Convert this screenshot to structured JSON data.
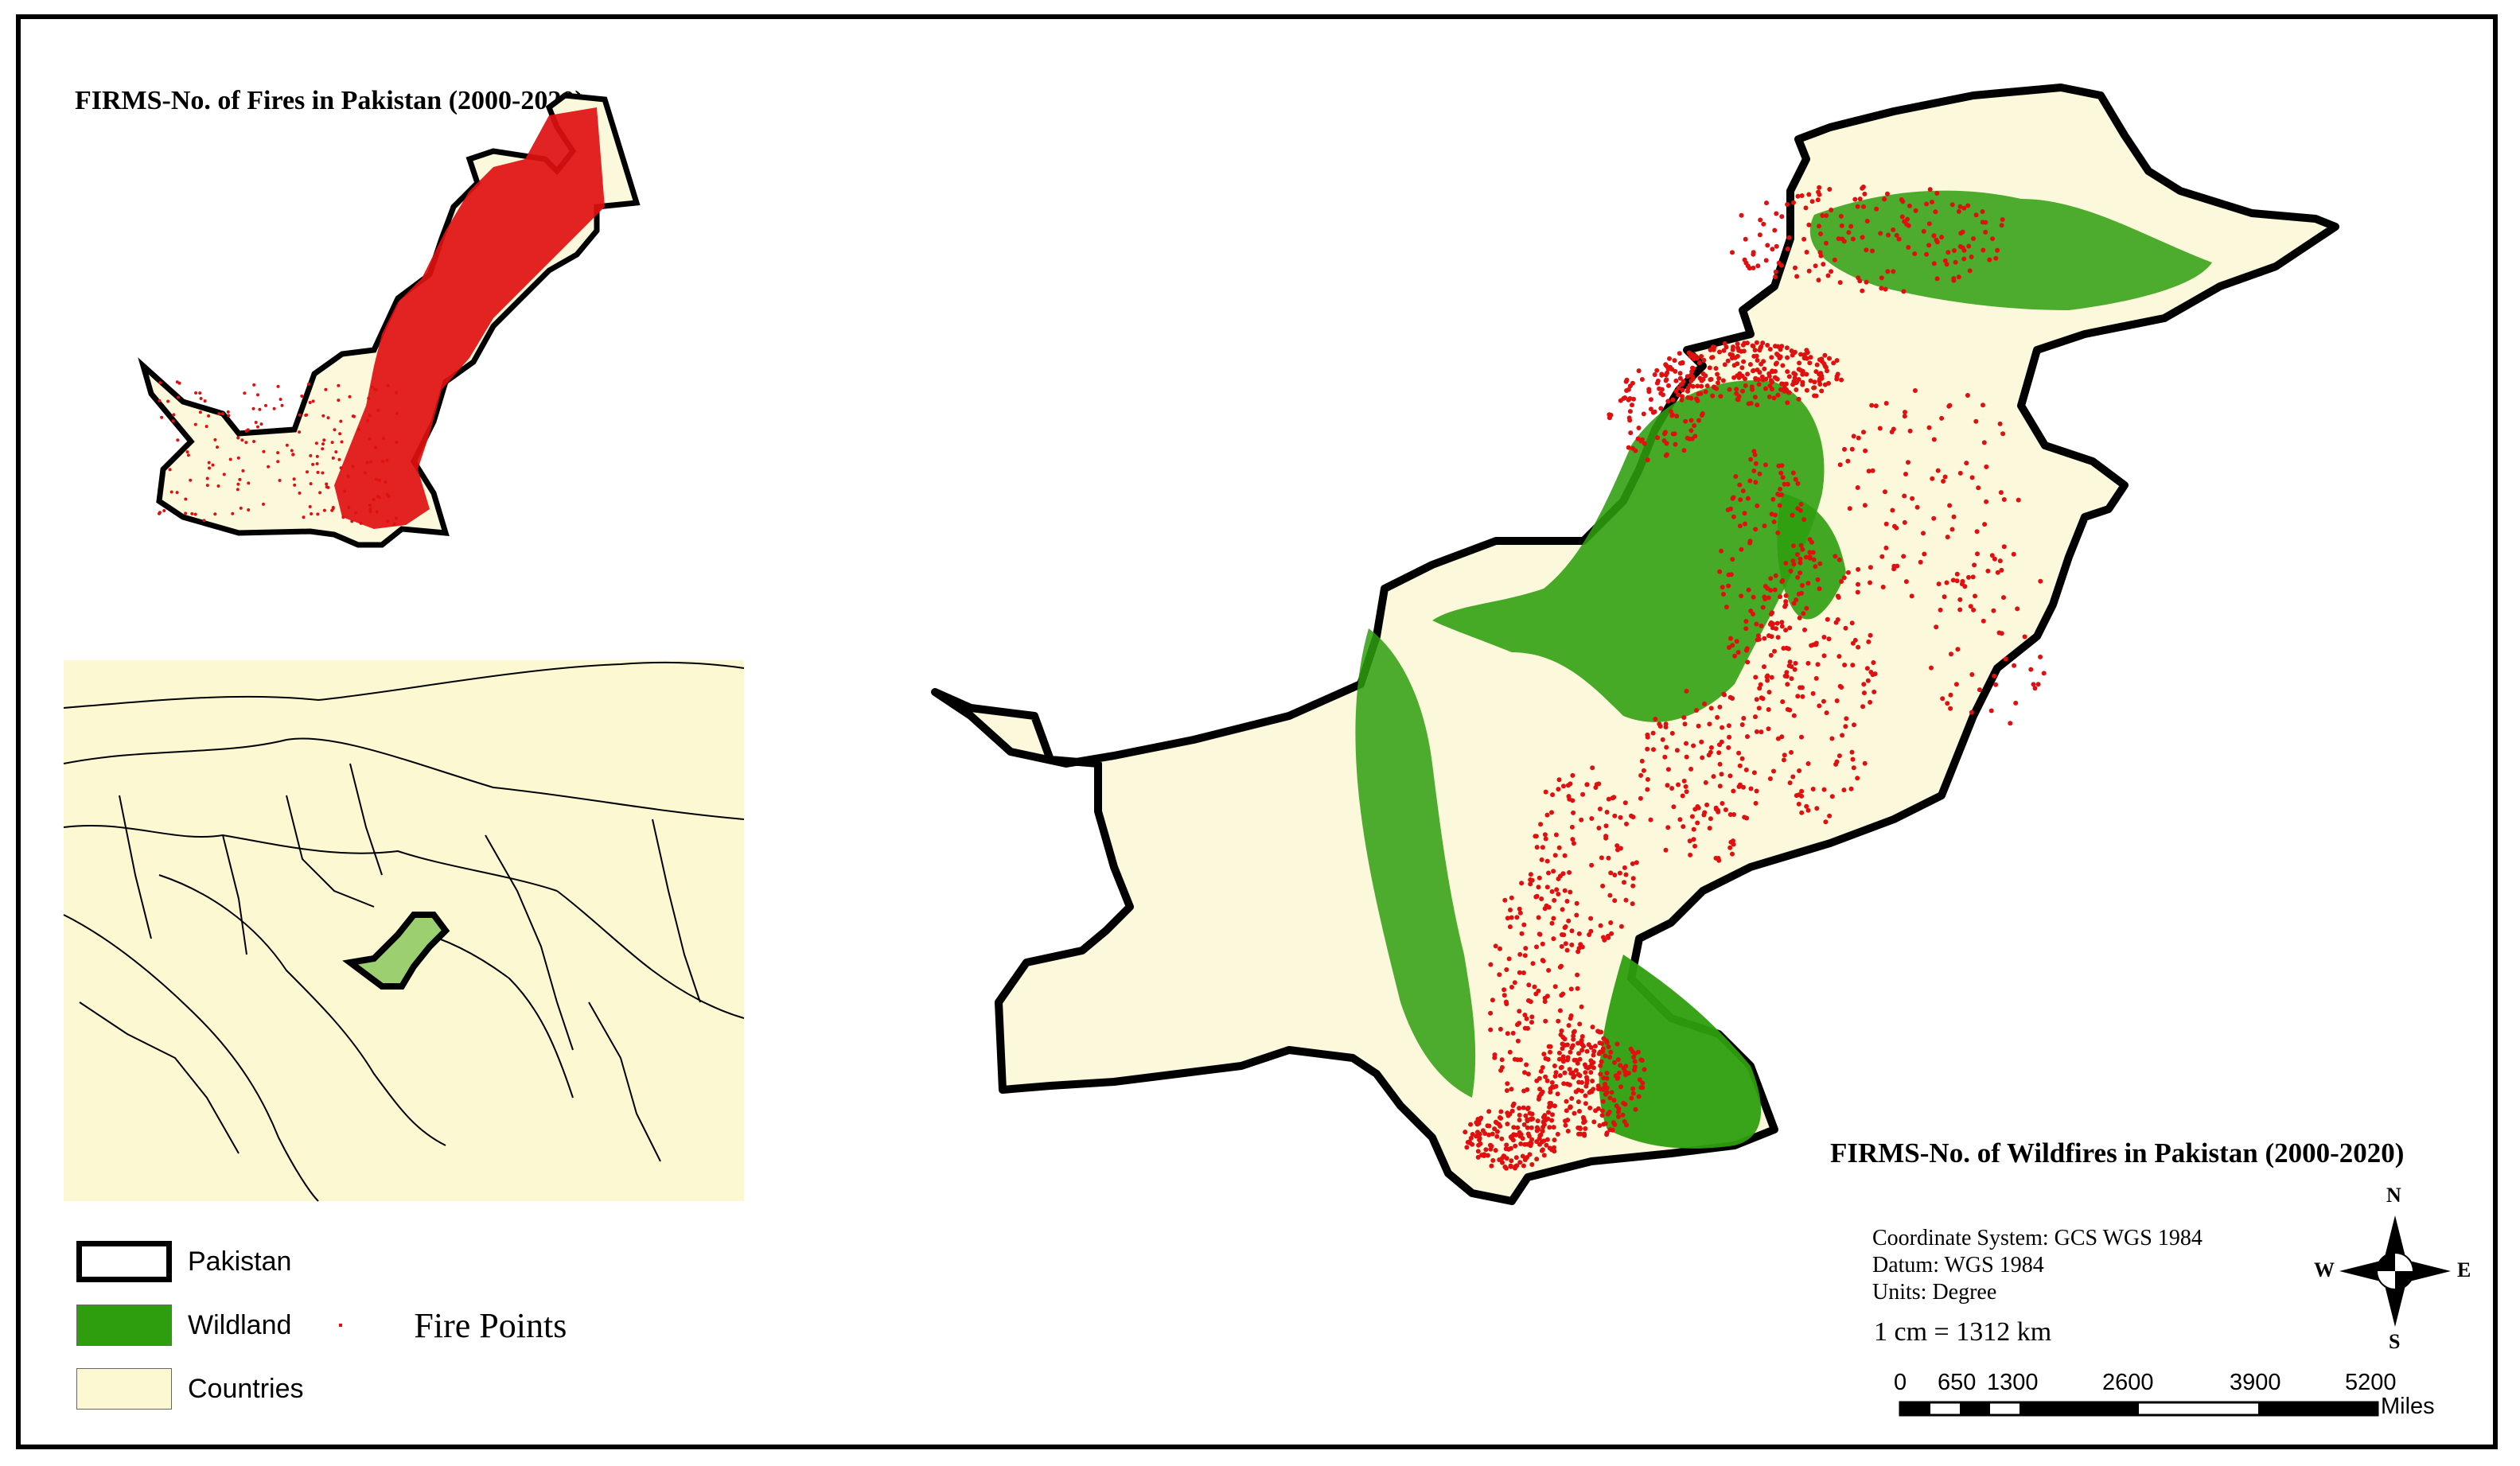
{
  "inset_map": {
    "title": "FIRMS-No. of Fires in Pakistan (2000-2020)"
  },
  "main_map": {
    "title": "FIRMS-No. of Wildfires in Pakistan (2000-2020)"
  },
  "legend": {
    "items": [
      {
        "label": "Pakistan",
        "color": "#ffffff"
      },
      {
        "label": "Wildland",
        "color": "#2e9e0e"
      },
      {
        "label": "Countries",
        "color": "#fbf8d2"
      }
    ],
    "fire_points_label": "Fire Points",
    "fire_color": "#e01010"
  },
  "metadata": {
    "coordinate_system": "Coordinate System: GCS WGS 1984",
    "datum": "Datum: WGS 1984",
    "units": "Units: Degree",
    "scale": "1 cm = 1312 km"
  },
  "compass": {
    "n": "N",
    "s": "S",
    "e": "E",
    "w": "W"
  },
  "scale_bar": {
    "ticks": [
      "0",
      "650",
      "1300",
      "2600",
      "3900",
      "5200"
    ],
    "unit": "Miles"
  },
  "colors": {
    "land": "#fbf8dc",
    "wildland": "#2e9e0e",
    "fire": "#e01010",
    "border": "#000000"
  }
}
